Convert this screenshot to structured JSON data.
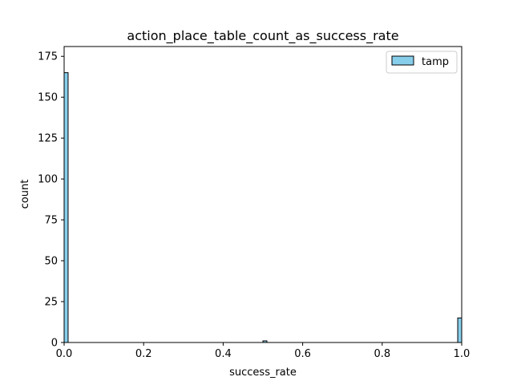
{
  "chart_data": {
    "type": "bar",
    "title": "action_place_table_count_as_success_rate",
    "xlabel": "success_rate",
    "ylabel": "count",
    "xlim": [
      0,
      1.0
    ],
    "ylim": [
      0,
      181
    ],
    "grid": false,
    "legend_position": "top-right",
    "x_ticks": [
      "0.0",
      "0.2",
      "0.4",
      "0.6",
      "0.8",
      "1.0"
    ],
    "x_tick_values": [
      0,
      0.2,
      0.4,
      0.6,
      0.8,
      1.0
    ],
    "y_ticks": [
      "0",
      "25",
      "50",
      "75",
      "100",
      "125",
      "150",
      "175"
    ],
    "y_tick_values": [
      0,
      25,
      50,
      75,
      100,
      125,
      150,
      175
    ],
    "series": [
      {
        "name": "tamp",
        "color": "#87ceeb",
        "edge_color": "#000000",
        "bins": [
          {
            "x0": 0.0,
            "x1": 0.01,
            "count": 165
          },
          {
            "x0": 0.5,
            "x1": 0.51,
            "count": 1
          },
          {
            "x0": 0.99,
            "x1": 1.0,
            "count": 15
          }
        ]
      }
    ]
  }
}
